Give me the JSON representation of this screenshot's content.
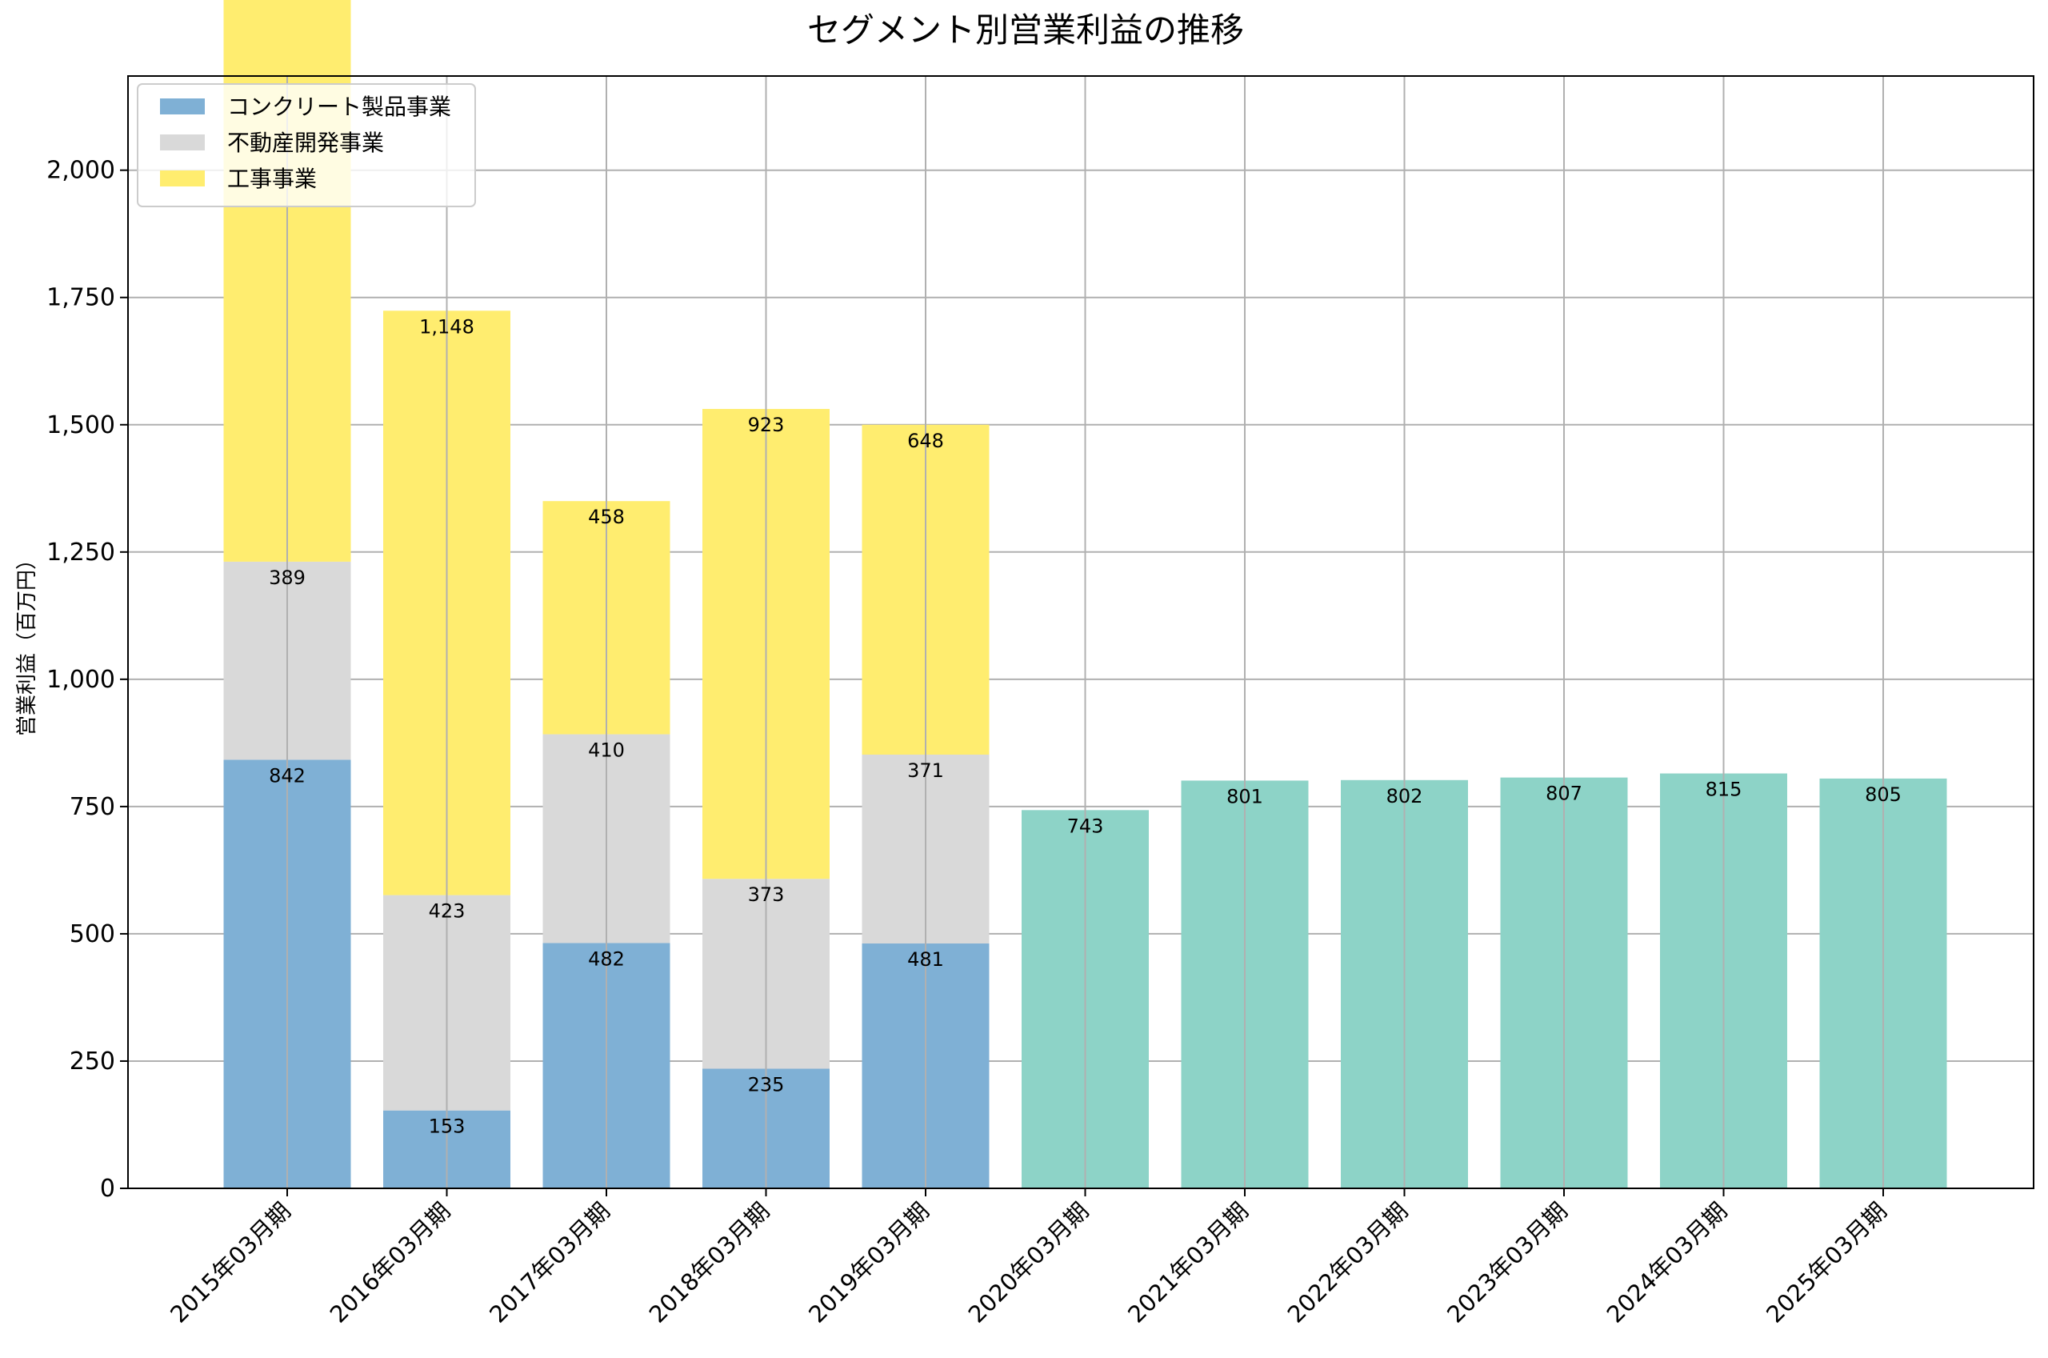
{
  "chart_data": {
    "type": "bar",
    "title": "セグメント別営業利益の推移",
    "xlabel": "",
    "ylabel": "営業利益（百万円）",
    "ylim": [
      0,
      2185
    ],
    "yticks": [
      0,
      250,
      500,
      750,
      1000,
      1250,
      1500,
      1750,
      2000
    ],
    "ytick_labels": [
      "0",
      "250",
      "500",
      "750",
      "1,000",
      "1,250",
      "1,500",
      "1,750",
      "2,000"
    ],
    "grid": true,
    "legend_position": "top-left",
    "categories": [
      "2015年03月期",
      "2016年03月期",
      "2017年03月期",
      "2018年03月期",
      "2019年03月期",
      "2020年03月期",
      "2021年03月期",
      "2022年03月期",
      "2023年03月期",
      "2024年03月期",
      "2025年03月期"
    ],
    "series": [
      {
        "name": "コンクリート製品事業",
        "color": "#7fb0d5",
        "values": [
          842,
          153,
          482,
          235,
          481,
          null,
          null,
          null,
          null,
          null,
          null
        ],
        "labels": [
          "842",
          "153",
          "482",
          "235",
          "481",
          "",
          "",
          "",
          "",
          "",
          ""
        ]
      },
      {
        "name": "不動産開発事業",
        "color": "#d9d9d9",
        "values": [
          389,
          423,
          410,
          373,
          371,
          null,
          null,
          null,
          null,
          null,
          null
        ],
        "labels": [
          "389",
          "423",
          "410",
          "373",
          "371",
          "",
          "",
          "",
          "",
          "",
          ""
        ]
      },
      {
        "name": "工事事業",
        "color": "#ffed6f",
        "values": [
          1111,
          1148,
          458,
          923,
          648,
          null,
          null,
          null,
          null,
          null,
          null
        ],
        "labels": [
          "",
          "1,148",
          "458",
          "923",
          "648",
          "",
          "",
          "",
          "",
          "",
          ""
        ]
      },
      {
        "name": "",
        "color": "#8dd3c7",
        "values": [
          null,
          null,
          null,
          null,
          null,
          743,
          801,
          802,
          807,
          815,
          805
        ],
        "labels": [
          "",
          "",
          "",
          "",
          "",
          "743",
          "801",
          "802",
          "807",
          "815",
          "805"
        ]
      }
    ]
  }
}
